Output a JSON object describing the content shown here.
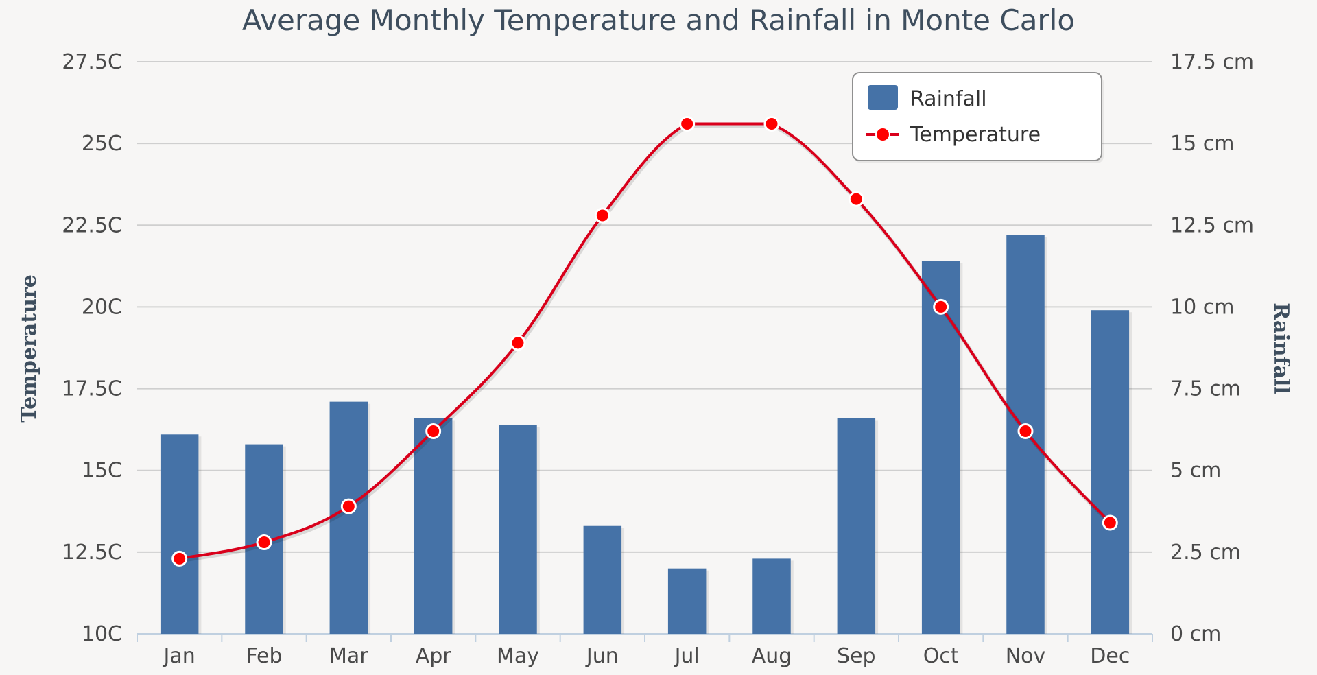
{
  "chart_data": {
    "type": "bar+line",
    "title": "Average Monthly Temperature and Rainfall in Monte Carlo",
    "categories": [
      "Jan",
      "Feb",
      "Mar",
      "Apr",
      "May",
      "Jun",
      "Jul",
      "Aug",
      "Sep",
      "Oct",
      "Nov",
      "Dec"
    ],
    "series": [
      {
        "name": "Rainfall",
        "type": "bar",
        "axis": "right",
        "color": "#4572a7",
        "values": [
          6.1,
          5.8,
          7.1,
          6.6,
          6.4,
          3.3,
          2.0,
          2.3,
          6.6,
          11.4,
          12.2,
          9.9
        ]
      },
      {
        "name": "Temperature",
        "type": "line",
        "axis": "left",
        "color": "#d9001b",
        "values": [
          12.3,
          12.8,
          13.9,
          16.2,
          18.9,
          22.8,
          25.6,
          25.6,
          23.3,
          20.0,
          16.2,
          13.4
        ]
      }
    ],
    "y_left": {
      "label": "Temperature",
      "min": 10,
      "max": 27.5,
      "ticks": [
        {
          "value": 10,
          "label": "10C"
        },
        {
          "value": 12.5,
          "label": "12.5C"
        },
        {
          "value": 15,
          "label": "15C"
        },
        {
          "value": 17.5,
          "label": "17.5C"
        },
        {
          "value": 20,
          "label": "20C"
        },
        {
          "value": 22.5,
          "label": "22.5C"
        },
        {
          "value": 25,
          "label": "25C"
        },
        {
          "value": 27.5,
          "label": "27.5C"
        }
      ]
    },
    "y_right": {
      "label": "Rainfall",
      "min": 0,
      "max": 17.5,
      "ticks": [
        {
          "value": 0,
          "label": "0 cm"
        },
        {
          "value": 2.5,
          "label": "2.5 cm"
        },
        {
          "value": 5,
          "label": "5 cm"
        },
        {
          "value": 7.5,
          "label": "7.5 cm"
        },
        {
          "value": 10,
          "label": "10 cm"
        },
        {
          "value": 12.5,
          "label": "12.5 cm"
        },
        {
          "value": 15,
          "label": "15 cm"
        },
        {
          "value": 17.5,
          "label": "17.5 cm"
        }
      ]
    },
    "grid": true,
    "legend": {
      "position": "top-right",
      "items": [
        "Rainfall",
        "Temperature"
      ]
    }
  }
}
